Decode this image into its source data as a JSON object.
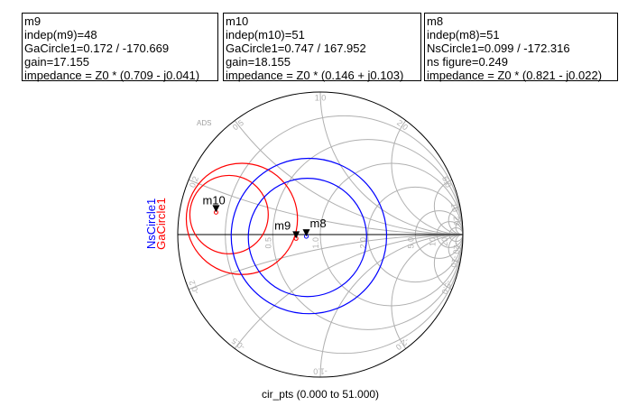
{
  "markers": [
    {
      "lines": [
        "m9",
        "indep(m9)=48",
        "GaCircle1=0.172 / -170.669",
        "gain=17.155",
        "impedance = Z0 * (0.709 - j0.041)"
      ]
    },
    {
      "lines": [
        "m10",
        "indep(m10)=51",
        "GaCircle1=0.747 / 167.952",
        "gain=18.155",
        "impedance = Z0 * (0.146 + j0.103)"
      ]
    },
    {
      "lines": [
        "m8",
        "indep(m8)=51",
        "NsCircle1=0.099 / -172.316",
        "ns figure=0.249",
        "impedance = Z0 * (0.821 - j0.022)"
      ]
    }
  ],
  "chart_data": {
    "type": "smith",
    "watermark": "ADS",
    "xlabel": "cir_pts (0.000 to 51.000)",
    "legend": [
      {
        "name": "NsCircle1",
        "color": "#0000ff"
      },
      {
        "name": "GaCircle1",
        "color": "#ff0000"
      }
    ],
    "legend_placement": "left-vertical",
    "grid": {
      "resistance": [
        0.2,
        0.5,
        1.0,
        2.0,
        5.0,
        10,
        20
      ],
      "reactance": [
        0.2,
        0.5,
        1.0,
        2.0,
        5.0,
        10,
        20,
        -0.2,
        -0.5,
        -1.0,
        -2.0,
        -5.0,
        -10,
        -20
      ],
      "resistance_labels": [
        "0.5",
        "1.0",
        "2.0",
        "5.0",
        "10",
        "20"
      ],
      "reactance_labels": [
        "0.2",
        "0.5",
        "1.0",
        "2.0",
        "5.0",
        "10",
        "20",
        "-0.2",
        "-0.5",
        "-1.0",
        "-2.0",
        "-5.0",
        "-10",
        "-20"
      ],
      "color": "#b0b0b0"
    },
    "series": [
      {
        "name": "GaCircle1",
        "color": "#ff0000",
        "circles": [
          {
            "center": [
              -0.55,
              0.11
            ],
            "radius": 0.39
          },
          {
            "center": [
              -0.64,
              0.14
            ],
            "radius": 0.275
          }
        ]
      },
      {
        "name": "NsCircle1",
        "color": "#0000ff",
        "circles": [
          {
            "center": [
              -0.08,
              -0.01
            ],
            "radius": 0.545
          },
          {
            "center": [
              -0.09,
              -0.02
            ],
            "radius": 0.415
          }
        ]
      }
    ],
    "marker_points": [
      {
        "name": "m10",
        "impedance": [
          0.146,
          0.103
        ]
      },
      {
        "name": "m9",
        "impedance": [
          0.709,
          -0.041
        ]
      },
      {
        "name": "m8",
        "impedance": [
          0.821,
          -0.022
        ]
      }
    ]
  }
}
